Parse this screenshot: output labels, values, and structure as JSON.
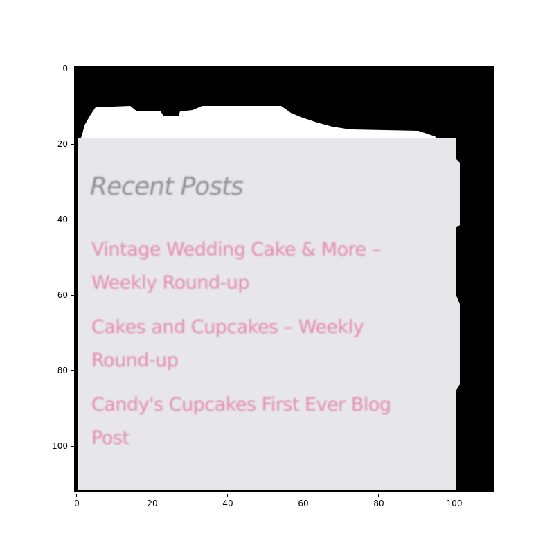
{
  "widget": {
    "title": "Recent Posts",
    "posts": [
      {
        "title_line1": "Vintage Wedding Cake & More –",
        "title_line2": "Weekly Round-up"
      },
      {
        "title_line1": "Cakes and Cupcakes – Weekly",
        "title_line2": "Round-up"
      },
      {
        "title_line1": "Candy's Cupcakes First Ever Blog",
        "title_line2": "Post"
      }
    ]
  },
  "axes": {
    "y_ticks": [
      "0",
      "20",
      "40",
      "60",
      "80",
      "100"
    ],
    "x_ticks": [
      "0",
      "20",
      "40",
      "60",
      "80",
      "100"
    ]
  },
  "colors": {
    "card_background": "#e7e6e9",
    "title_color": "#8f8e92",
    "link_color": "#e48bab",
    "frame_background": "#000000"
  }
}
